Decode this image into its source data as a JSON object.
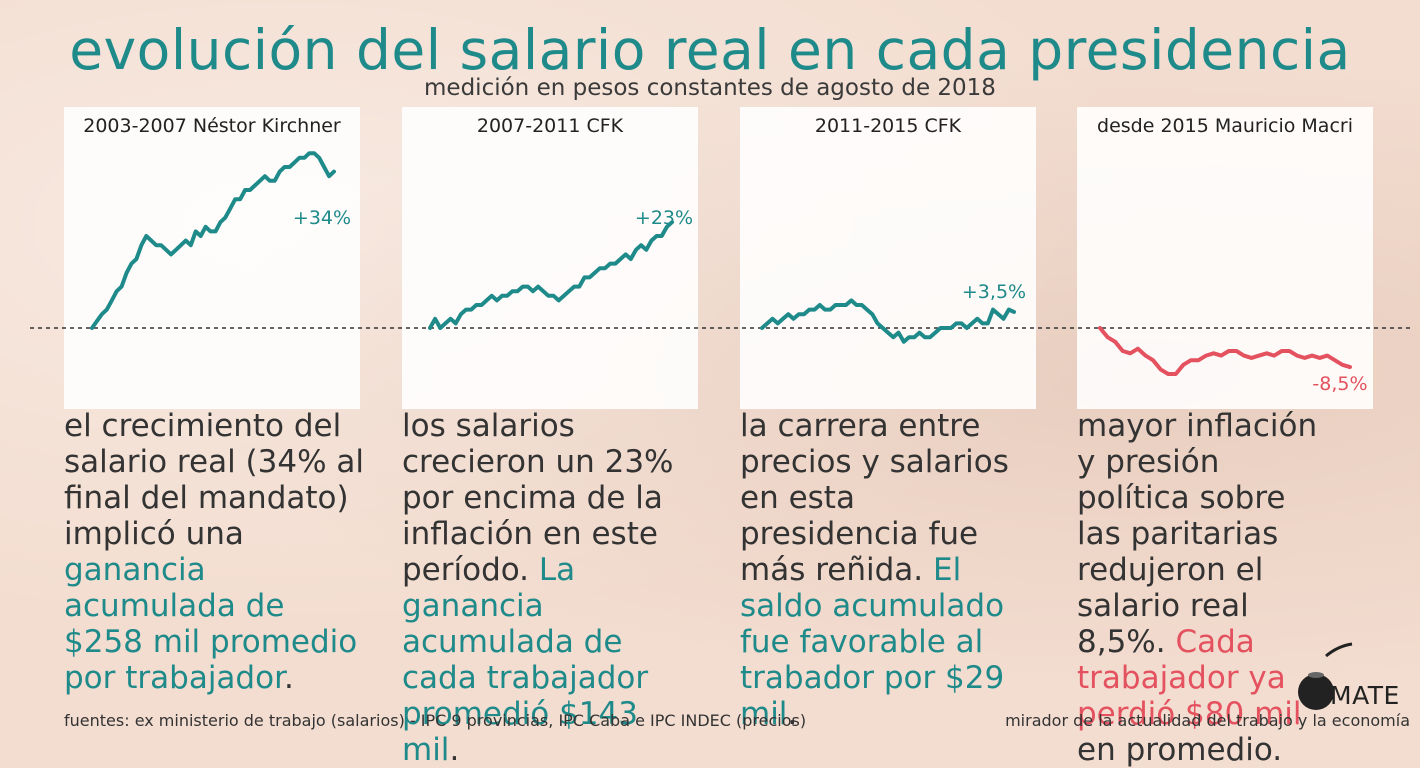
{
  "header": {
    "title": "evolución del salario real en cada presidencia",
    "subtitle": "medición en pesos constantes de agosto de 2018"
  },
  "colors": {
    "teal": "#1f8a8a",
    "red": "#e4515f",
    "background": "#f3ddd0"
  },
  "chart_data": [
    {
      "type": "line",
      "title": "2003-2007 Néstor Kirchner",
      "x": [
        0,
        1,
        2,
        3,
        4,
        5,
        6,
        7,
        8,
        9,
        10,
        11,
        12,
        13,
        14,
        15,
        16,
        17,
        18,
        19,
        20,
        21,
        22,
        23,
        24,
        25,
        26,
        27,
        28,
        29,
        30,
        31,
        32,
        33,
        34,
        35,
        36,
        37,
        38,
        39,
        40,
        41,
        42,
        43,
        44,
        45,
        46,
        47,
        48,
        49
      ],
      "series": [
        {
          "values": [
            0,
            1.5,
            3,
            4,
            6,
            8,
            9,
            12,
            14,
            15,
            18,
            20,
            19,
            18,
            18,
            17,
            16,
            17,
            18,
            19,
            18,
            21,
            20,
            22,
            21,
            21,
            23,
            24,
            26,
            28,
            28,
            30,
            30,
            31,
            32,
            33,
            32,
            32,
            34,
            35,
            35,
            36,
            37,
            37,
            38,
            38,
            37,
            35,
            33,
            34
          ],
          "color": "#1f8a8a"
        }
      ],
      "annotation": "+34%",
      "ylim": [
        -15,
        40
      ]
    },
    {
      "type": "line",
      "title": "2007-2011 CFK",
      "x": [
        0,
        1,
        2,
        3,
        4,
        5,
        6,
        7,
        8,
        9,
        10,
        11,
        12,
        13,
        14,
        15,
        16,
        17,
        18,
        19,
        20,
        21,
        22,
        23,
        24,
        25,
        26,
        27,
        28,
        29,
        30,
        31,
        32,
        33,
        34,
        35,
        36,
        37,
        38,
        39,
        40,
        41,
        42,
        43,
        44,
        45,
        46,
        47
      ],
      "series": [
        {
          "values": [
            0,
            2,
            0,
            1,
            2,
            1,
            3,
            4,
            4,
            5,
            5,
            6,
            7,
            6,
            7,
            7,
            8,
            8,
            9,
            9,
            8,
            9,
            8,
            7,
            7,
            6,
            7,
            8,
            9,
            9,
            11,
            11,
            12,
            13,
            13,
            14,
            14,
            15,
            16,
            15,
            17,
            18,
            17,
            19,
            20,
            20,
            22,
            23
          ],
          "color": "#1f8a8a"
        }
      ],
      "annotation": "+23%",
      "ylim": [
        -15,
        40
      ]
    },
    {
      "type": "line",
      "title": "2011-2015 CFK",
      "x": [
        0,
        1,
        2,
        3,
        4,
        5,
        6,
        7,
        8,
        9,
        10,
        11,
        12,
        13,
        14,
        15,
        16,
        17,
        18,
        19,
        20,
        21,
        22,
        23,
        24,
        25,
        26,
        27,
        28,
        29,
        30,
        31,
        32,
        33,
        34,
        35,
        36,
        37,
        38,
        39,
        40,
        41,
        42,
        43,
        44,
        45,
        46,
        47,
        48
      ],
      "series": [
        {
          "values": [
            0,
            1,
            2,
            1,
            2,
            3,
            2,
            3,
            3,
            4,
            4,
            5,
            4,
            4,
            5,
            5,
            5,
            6,
            5,
            5,
            4,
            3,
            1,
            0,
            -1,
            -2,
            -1,
            -3,
            -2,
            -2,
            -1,
            -2,
            -2,
            -1,
            0,
            0,
            0,
            1,
            1,
            0,
            1,
            2,
            1,
            1,
            4,
            3,
            2,
            4,
            3.5
          ],
          "color": "#1f8a8a"
        }
      ],
      "annotation": "+3,5%",
      "ylim": [
        -15,
        40
      ]
    },
    {
      "type": "line",
      "title": "desde 2015 Mauricio Macri",
      "x": [
        0,
        1,
        2,
        3,
        4,
        5,
        6,
        7,
        8,
        9,
        10,
        11,
        12,
        13,
        14,
        15,
        16,
        17,
        18,
        19,
        20,
        21,
        22,
        23,
        24,
        25,
        26,
        27,
        28,
        29,
        30,
        31,
        32,
        33
      ],
      "series": [
        {
          "values": [
            0,
            -2,
            -3,
            -5,
            -5.5,
            -4.5,
            -6,
            -7,
            -9,
            -10,
            -10,
            -8,
            -7,
            -7,
            -6,
            -5.5,
            -6,
            -5,
            -5,
            -6,
            -6.5,
            -6,
            -5.5,
            -6,
            -5,
            -5,
            -6,
            -6.5,
            -6,
            -6.5,
            -6,
            -7,
            -8,
            -8.5
          ],
          "color": "#e4515f"
        }
      ],
      "annotation": "-8,5%",
      "ylim": [
        -15,
        40
      ]
    }
  ],
  "descriptions": [
    {
      "normal": "el crecimiento del salario real (34% al final del mandato) implicó una ",
      "highlight": "ganancia acumulada de $258 mil promedio por trabajador",
      "tail": "."
    },
    {
      "normal": "los salarios crecieron un 23% por encima de la inflación en este período. ",
      "highlight": "La ganancia acumulada de cada trabajador promedió $143 mil",
      "tail": "."
    },
    {
      "normal": "la carrera entre precios y salarios en esta presidencia fue más reñida. ",
      "highlight": "El saldo acumulado fue favorable al trabador por $29 mil",
      "tail": "."
    },
    {
      "normal": "mayor inflación y presión política sobre las paritarias redujeron el salario real 8,5%. ",
      "highlight": "Cada trabajador ya perdió $80 mil",
      "tail": " en promedio."
    }
  ],
  "footer": {
    "sources": "fuentes: ex ministerio de trabajo (salarios) - IPC 9 provincias, IPC Caba e IPC INDEC (precios)",
    "tagline": "mirador de la actualidad del trabajo y la economía"
  },
  "logo": {
    "text": "MATE",
    "icon": "mate-gourd-icon"
  }
}
